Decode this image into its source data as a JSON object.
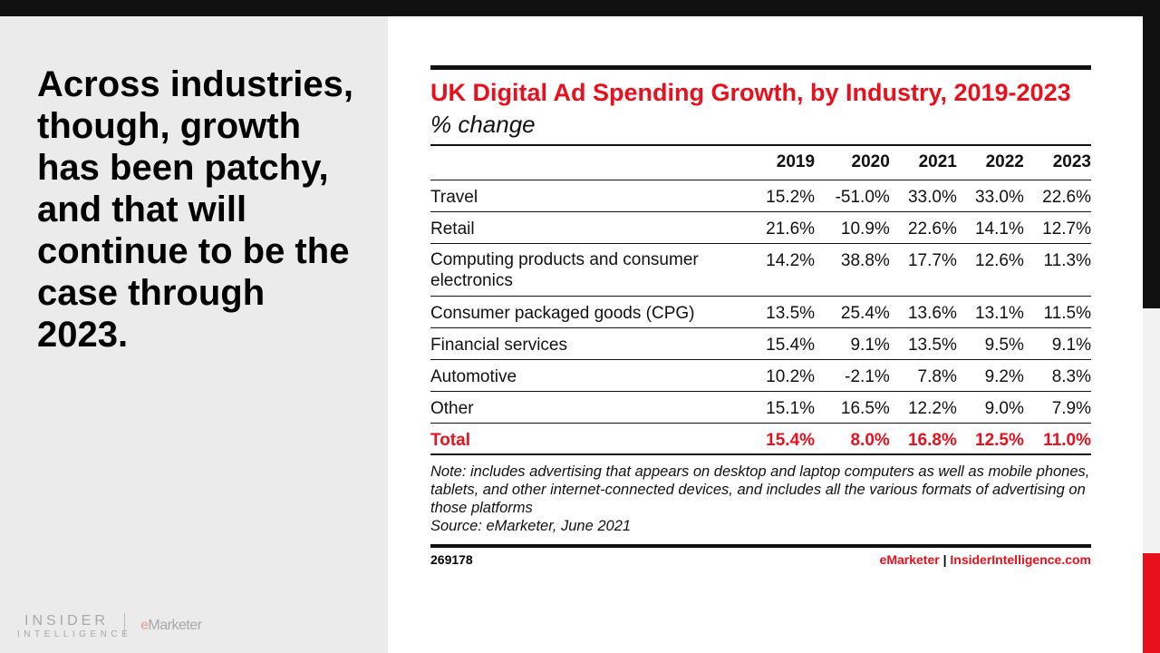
{
  "headline": "Across industries, though, growth has been patchy, and that will continue to be the case through 2023.",
  "logo": {
    "line1": "INSIDER",
    "line2": "INTELLIGENCE",
    "em_e": "e",
    "em_rest": "Marketer"
  },
  "chart": {
    "title": "UK Digital Ad Spending Growth, by Industry, 2019-2023",
    "subtitle": "% change"
  },
  "chart_data": {
    "type": "table",
    "columns": [
      "",
      "2019",
      "2020",
      "2021",
      "2022",
      "2023"
    ],
    "rows": [
      [
        "Travel",
        "15.2%",
        "-51.0%",
        "33.0%",
        "33.0%",
        "22.6%"
      ],
      [
        "Retail",
        "21.6%",
        "10.9%",
        "22.6%",
        "14.1%",
        "12.7%"
      ],
      [
        "Computing products and consumer electronics",
        "14.2%",
        "38.8%",
        "17.7%",
        "12.6%",
        "11.3%"
      ],
      [
        "Consumer packaged goods (CPG)",
        "13.5%",
        "25.4%",
        "13.6%",
        "13.1%",
        "11.5%"
      ],
      [
        "Financial services",
        "15.4%",
        "9.1%",
        "13.5%",
        "9.5%",
        "9.1%"
      ],
      [
        "Automotive",
        "10.2%",
        "-2.1%",
        "7.8%",
        "9.2%",
        "8.3%"
      ],
      [
        "Other",
        "15.1%",
        "16.5%",
        "12.2%",
        "9.0%",
        "7.9%"
      ],
      [
        "Total",
        "15.4%",
        "8.0%",
        "16.8%",
        "12.5%",
        "11.0%"
      ]
    ]
  },
  "note": "Note: includes advertising that appears on desktop and laptop computers as well as mobile phones, tablets, and other internet-connected devices, and includes all the various formats of advertising on those platforms",
  "source": "Source: eMarketer, June 2021",
  "footer": {
    "id": "269178",
    "brand": "eMarketer",
    "sep": "|",
    "site": "InsiderIntelligence.com"
  },
  "colors": {
    "accent": "#e8101c",
    "dark": "#111111"
  }
}
